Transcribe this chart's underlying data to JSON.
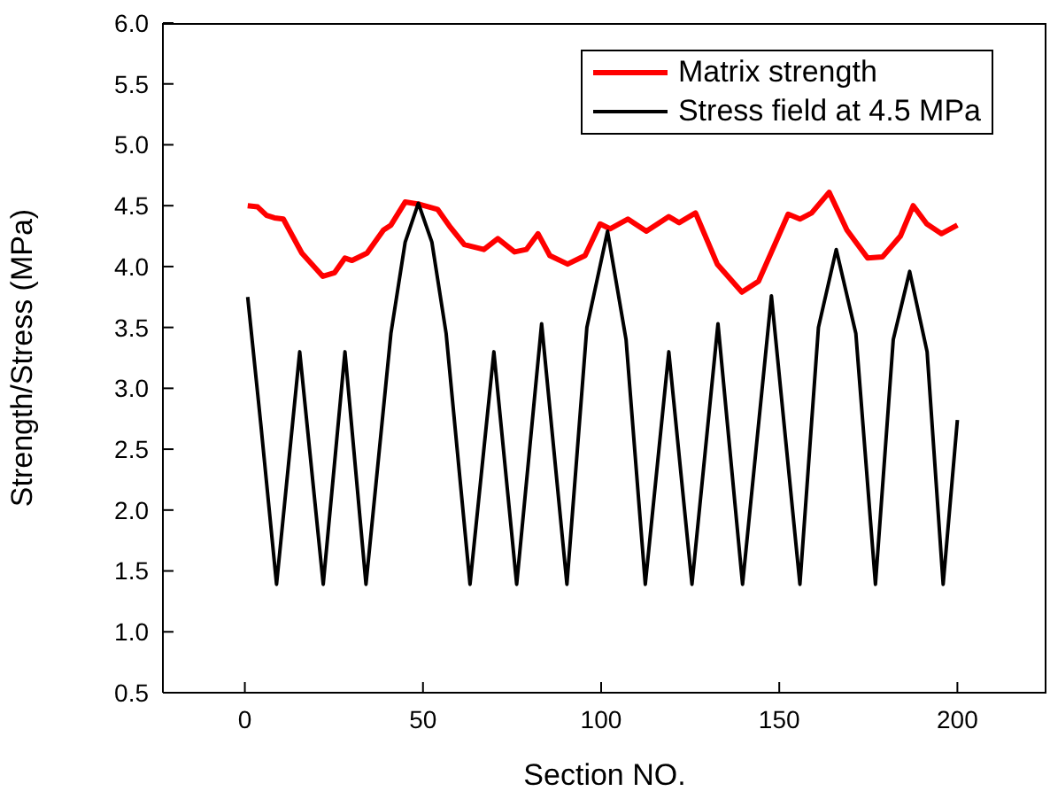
{
  "chart_data": {
    "type": "line",
    "xlabel": "Section NO.",
    "ylabel": "Strength/Stress (MPa)",
    "xlim": [
      -23,
      225
    ],
    "xticks": [
      0,
      50,
      100,
      150,
      200
    ],
    "ylim": [
      0.5,
      6.0
    ],
    "yticks": [
      {
        "value": 0.5,
        "label": "0.5"
      },
      {
        "value": 1,
        "label": "1.0"
      },
      {
        "value": 1.5,
        "label": "1.5"
      },
      {
        "value": 2,
        "label": "2.0"
      },
      {
        "value": 2.5,
        "label": "2.5"
      },
      {
        "value": 3,
        "label": "3.0"
      },
      {
        "value": 3.5,
        "label": "3.5"
      },
      {
        "value": 4,
        "label": "4.0"
      },
      {
        "value": 4.5,
        "label": "4.5"
      },
      {
        "value": 5,
        "label": "5.0"
      },
      {
        "value": 5.5,
        "label": "5.5"
      },
      {
        "value": 6,
        "label": "6.0"
      }
    ],
    "grid": false,
    "legend": "top right",
    "marker": "none",
    "line_style": "solid",
    "series": [
      {
        "name": "Matrix strength",
        "color": "#ff0000",
        "x": [
          0.8,
          3.6,
          6.1,
          8.3,
          10.8,
          16,
          21.9,
          25.2,
          28.1,
          30.1,
          34.3,
          38.9,
          41,
          45,
          49.2,
          54.1,
          57.5,
          61.6,
          67.1,
          71,
          75.7,
          79,
          82.3,
          85.6,
          90.6,
          95.5,
          99.7,
          102.5,
          107.5,
          112.7,
          119,
          121.9,
          126.5,
          132.6,
          139.5,
          144.2,
          152.5,
          155.8,
          159.1,
          164,
          169,
          174.8,
          179,
          184,
          187.6,
          191.4,
          195.5,
          200
        ],
        "values": [
          4.5,
          4.49,
          4.42,
          4.4,
          4.39,
          4.11,
          3.92,
          3.95,
          4.07,
          4.05,
          4.11,
          4.3,
          4.34,
          4.53,
          4.51,
          4.47,
          4.33,
          4.18,
          4.14,
          4.23,
          4.12,
          4.14,
          4.27,
          4.09,
          4.02,
          4.09,
          4.35,
          4.31,
          4.39,
          4.29,
          4.41,
          4.36,
          4.44,
          4.02,
          3.79,
          3.88,
          4.43,
          4.39,
          4.44,
          4.61,
          4.3,
          4.07,
          4.08,
          4.25,
          4.5,
          4.35,
          4.27,
          4.34
        ]
      },
      {
        "name": "Stress field at 4.5 MPa",
        "color": "#000000",
        "x": [
          0.8,
          4.5,
          8.9,
          15.4,
          22,
          28.1,
          34,
          41,
          45,
          48.7,
          52.5,
          56.5,
          63.2,
          69.9,
          76.3,
          83.3,
          90.4,
          96,
          101.8,
          107,
          112.4,
          119,
          125.5,
          132.8,
          139.7,
          147.8,
          155.8,
          161,
          166,
          171.5,
          177,
          182,
          186.6,
          191.5,
          196,
          200
        ],
        "values": [
          3.75,
          2.7,
          1.39,
          3.3,
          1.39,
          3.3,
          1.39,
          3.45,
          4.2,
          4.52,
          4.2,
          3.45,
          1.39,
          3.3,
          1.39,
          3.53,
          1.39,
          3.5,
          4.29,
          3.4,
          1.39,
          3.3,
          1.39,
          3.53,
          1.39,
          3.76,
          1.39,
          3.5,
          4.14,
          3.45,
          1.39,
          3.4,
          3.96,
          3.3,
          1.39,
          2.74
        ]
      }
    ]
  }
}
